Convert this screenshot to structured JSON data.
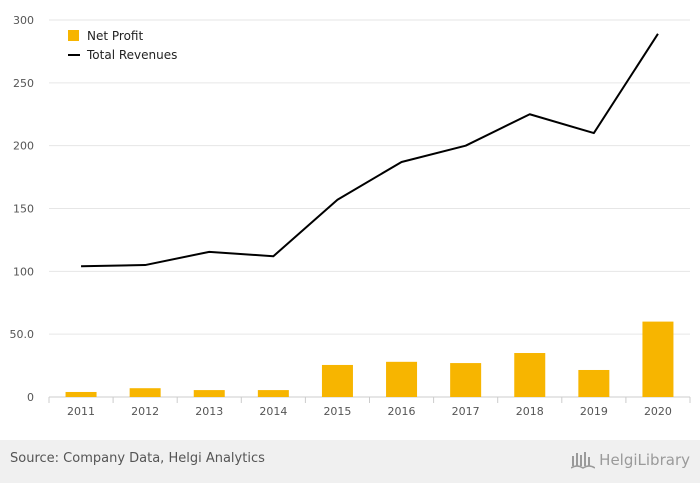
{
  "chart_data": {
    "type": "bar+line",
    "categories": [
      "2011",
      "2012",
      "2013",
      "2014",
      "2015",
      "2016",
      "2017",
      "2018",
      "2019",
      "2020"
    ],
    "series": [
      {
        "name": "Net Profit",
        "type": "bar",
        "color": "#f7b500",
        "values": [
          4,
          7,
          5.5,
          5.5,
          25.5,
          28,
          27,
          35,
          21.5,
          60
        ]
      },
      {
        "name": "Total Revenues",
        "type": "line",
        "color": "#000000",
        "values": [
          104,
          105,
          115.5,
          112,
          157,
          187,
          200,
          225,
          210,
          289
        ]
      }
    ],
    "ylim": [
      0,
      300
    ],
    "y_ticks": [
      {
        "value": 0,
        "label": "0"
      },
      {
        "value": 50,
        "label": "50.0"
      },
      {
        "value": 100,
        "label": "100"
      },
      {
        "value": 150,
        "label": "150"
      },
      {
        "value": 200,
        "label": "200"
      },
      {
        "value": 250,
        "label": "250"
      },
      {
        "value": 300,
        "label": "300"
      }
    ],
    "grid": true,
    "legend_position": "top-left"
  },
  "footer": {
    "source": "Source: Company Data, Helgi Analytics",
    "logo": "HelgiLibrary"
  }
}
